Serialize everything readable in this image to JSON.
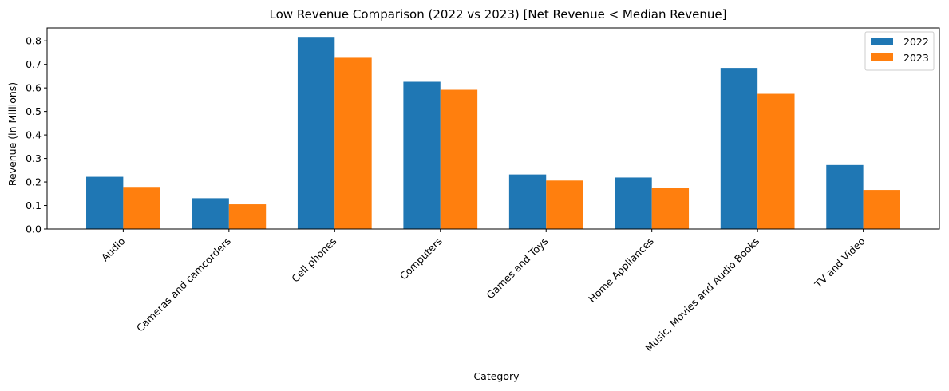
{
  "chart_data": {
    "type": "bar",
    "title": "Low Revenue Comparison (2022 vs 2023) [Net Revenue < Median Revenue]",
    "xlabel": "Category",
    "ylabel": "Revenue (in Millions)",
    "ylim": [
      0,
      0.855
    ],
    "yticks": [
      0.0,
      0.1,
      0.2,
      0.3,
      0.4,
      0.5,
      0.6,
      0.7,
      0.8
    ],
    "ytick_labels": [
      "0.0",
      "0.1",
      "0.2",
      "0.3",
      "0.4",
      "0.5",
      "0.6",
      "0.7",
      "0.8"
    ],
    "categories": [
      "Audio",
      "Cameras and camcorders",
      "Cell phones",
      "Computers",
      "Games and Toys",
      "Home Appliances",
      "Music, Movies and Audio Books",
      "TV and Video"
    ],
    "series": [
      {
        "name": "2022",
        "color": "#1f77b4",
        "values": [
          0.222,
          0.131,
          0.817,
          0.626,
          0.232,
          0.219,
          0.685,
          0.272
        ]
      },
      {
        "name": "2023",
        "color": "#ff7f0e",
        "values": [
          0.179,
          0.105,
          0.728,
          0.592,
          0.206,
          0.175,
          0.575,
          0.166
        ]
      }
    ],
    "legend_position": "top-right",
    "grid": false
  }
}
